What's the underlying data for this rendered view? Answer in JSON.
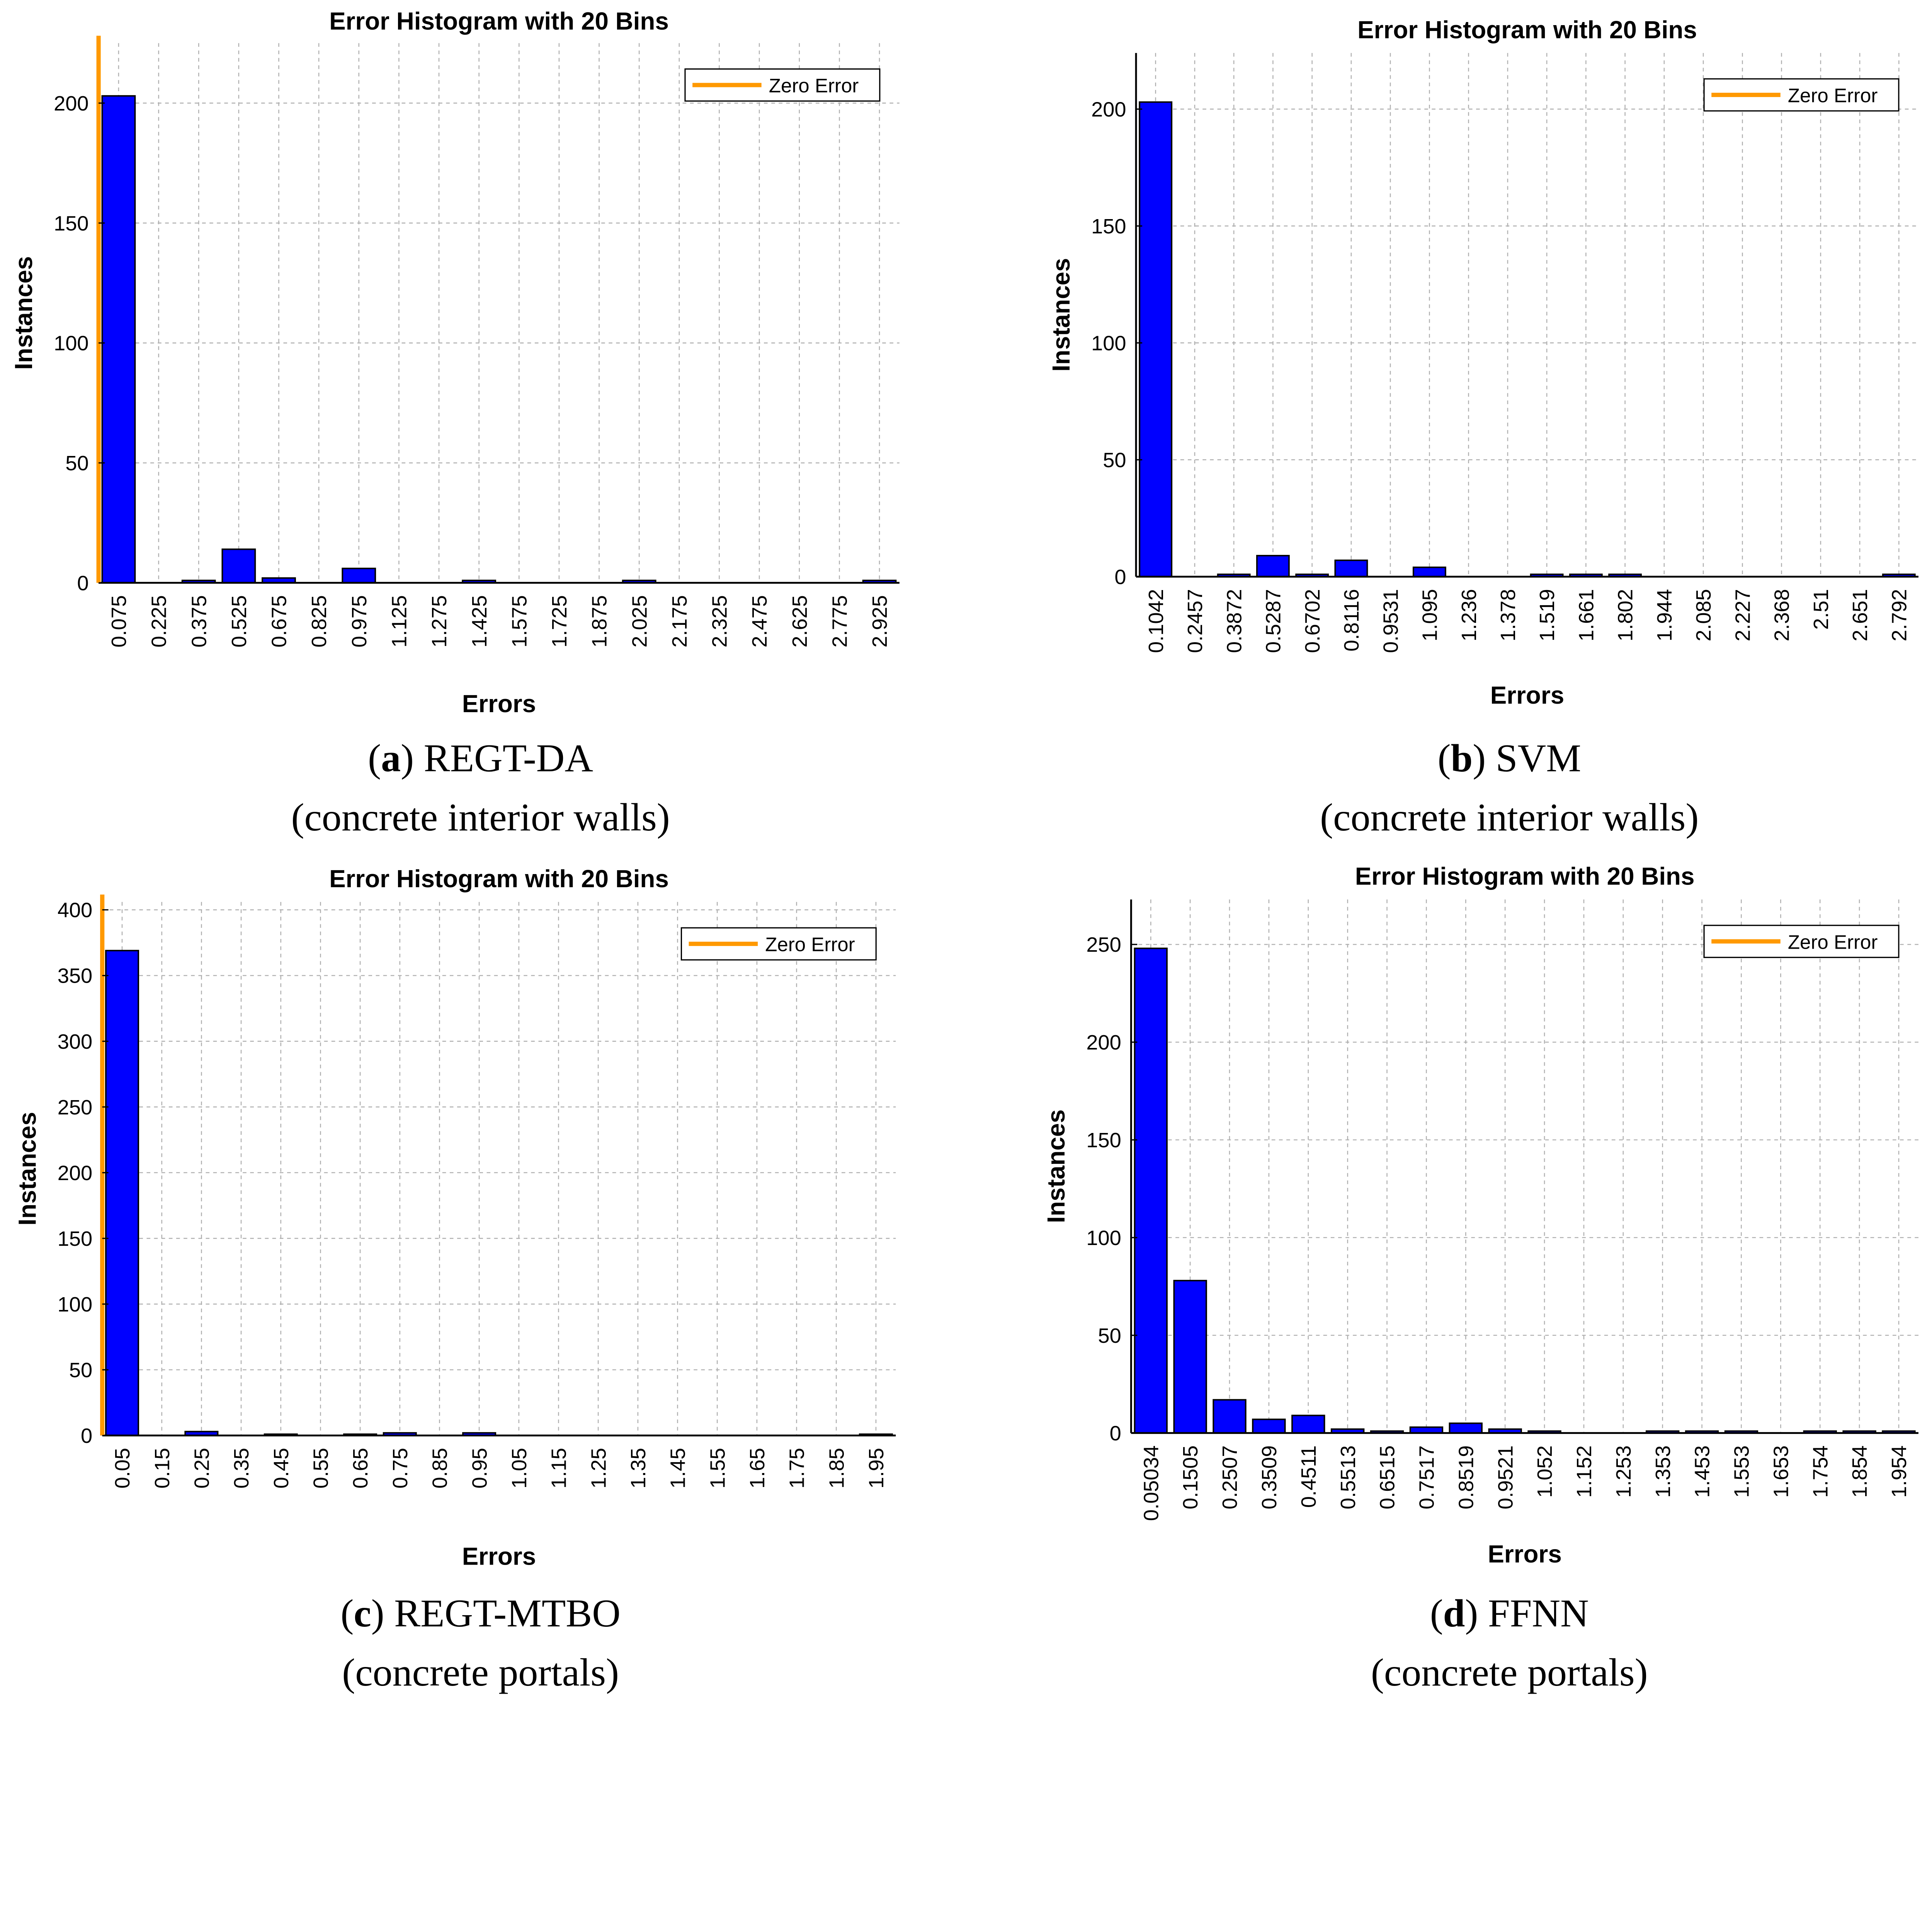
{
  "colors": {
    "bar": "#0000ff",
    "bar_edge": "#000000",
    "zero_line": "#ff9900",
    "grid": "#b0b0b0"
  },
  "chart_data": [
    {
      "type": "bar",
      "title": "Error Histogram with 20 Bins",
      "xlabel": "Errors",
      "ylabel": "Instances",
      "legend": {
        "label": "Zero Error",
        "placement": "top-right"
      },
      "caption_letter": "a",
      "caption_name": "REGT-DA",
      "caption_sub": "(concrete interior walls)",
      "categories": [
        "0.075",
        "0.225",
        "0.375",
        "0.525",
        "0.675",
        "0.825",
        "0.975",
        "1.125",
        "1.275",
        "1.425",
        "1.575",
        "1.725",
        "1.875",
        "2.025",
        "2.175",
        "2.325",
        "2.475",
        "2.625",
        "2.775",
        "2.925"
      ],
      "values": [
        203,
        0,
        1,
        14,
        2,
        0,
        6,
        0,
        0,
        1,
        0,
        0,
        0,
        1,
        0,
        0,
        0,
        0,
        0,
        1
      ],
      "bin_width": 0.15,
      "yticks": [
        0,
        50,
        100,
        150,
        200
      ],
      "ylim": [
        0,
        225
      ],
      "grid": true
    },
    {
      "type": "bar",
      "title": "Error Histogram with 20 Bins",
      "xlabel": "Errors",
      "ylabel": "Instances",
      "legend": {
        "label": "Zero Error",
        "placement": "top-right"
      },
      "caption_letter": "b",
      "caption_name": "SVM",
      "caption_sub": "(concrete interior walls)",
      "categories": [
        "0.1042",
        "0.2457",
        "0.3872",
        "0.5287",
        "0.6702",
        "0.8116",
        "0.9531",
        "1.095",
        "1.236",
        "1.378",
        "1.519",
        "1.661",
        "1.802",
        "1.944",
        "2.085",
        "2.227",
        "2.368",
        "2.51",
        "2.651",
        "2.792"
      ],
      "values": [
        203,
        0,
        1,
        9,
        1,
        7,
        0,
        4,
        0,
        0,
        1,
        1,
        1,
        0,
        0,
        0,
        0,
        0,
        0,
        1
      ],
      "bin_width": 0.1415,
      "yticks": [
        0,
        50,
        100,
        150,
        200
      ],
      "ylim": [
        0,
        224
      ],
      "grid": true
    },
    {
      "type": "bar",
      "title": "Error Histogram with 20 Bins",
      "xlabel": "Errors",
      "ylabel": "Instances",
      "legend": {
        "label": "Zero Error",
        "placement": "top-right"
      },
      "caption_letter": "c",
      "caption_name": "REGT-MTBO",
      "caption_sub": "(concrete portals)",
      "categories": [
        "0.05",
        "0.15",
        "0.25",
        "0.35",
        "0.45",
        "0.55",
        "0.65",
        "0.75",
        "0.85",
        "0.95",
        "1.05",
        "1.15",
        "1.25",
        "1.35",
        "1.45",
        "1.55",
        "1.65",
        "1.75",
        "1.85",
        "1.95"
      ],
      "values": [
        369,
        0,
        3,
        0,
        1,
        0,
        1,
        2,
        0,
        2,
        0,
        0,
        0,
        0,
        0,
        0,
        0,
        0,
        0,
        1
      ],
      "bin_width": 0.1,
      "yticks": [
        0,
        50,
        100,
        150,
        200,
        250,
        300,
        350,
        400
      ],
      "ylim": [
        0,
        406
      ],
      "grid": true
    },
    {
      "type": "bar",
      "title": "Error Histogram with 20 Bins",
      "xlabel": "Errors",
      "ylabel": "Instances",
      "legend": {
        "label": "Zero Error",
        "placement": "top-right"
      },
      "caption_letter": "d",
      "caption_name": "FFNN",
      "caption_sub": "(concrete portals)",
      "categories": [
        "0.05034",
        "0.1505",
        "0.2507",
        "0.3509",
        "0.4511",
        "0.5513",
        "0.6515",
        "0.7517",
        "0.8519",
        "0.9521",
        "1.052",
        "1.152",
        "1.253",
        "1.353",
        "1.453",
        "1.553",
        "1.653",
        "1.754",
        "1.854",
        "1.954"
      ],
      "values": [
        248,
        78,
        17,
        7,
        9,
        2,
        1,
        3,
        5,
        2,
        1,
        0,
        0,
        1,
        1,
        1,
        0,
        1,
        1,
        1
      ],
      "bin_width": 0.1002,
      "yticks": [
        0,
        50,
        100,
        150,
        200,
        250
      ],
      "ylim": [
        0,
        273
      ],
      "grid": true
    }
  ]
}
